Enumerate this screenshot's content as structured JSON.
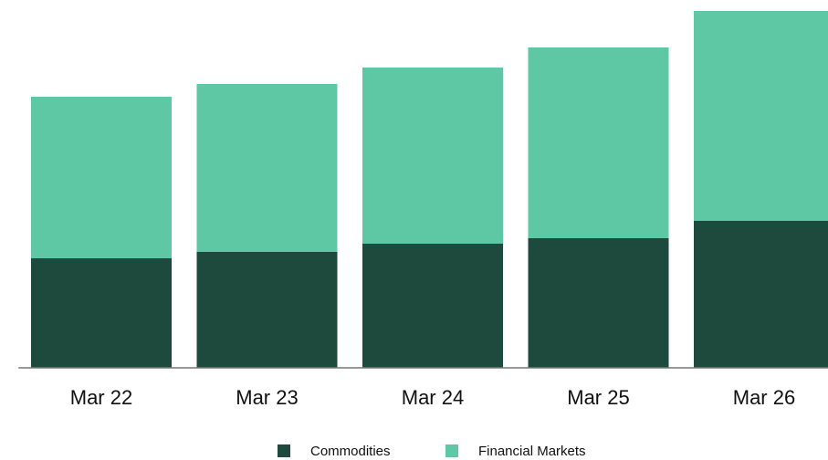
{
  "chart_data": {
    "type": "stacked_bar",
    "categories": [
      "Mar 22",
      "Mar 23",
      "Mar 24",
      "Mar 25",
      "Mar 26"
    ],
    "series": [
      {
        "name": "Commodities",
        "color": "#1e4a3d",
        "values": [
          120,
          127,
          136,
          142,
          161
        ]
      },
      {
        "name": "Financial Markets",
        "color": "#5ec8a5",
        "values": [
          177,
          184,
          193,
          209,
          230
        ]
      }
    ],
    "ylim": [
      0,
      400
    ]
  }
}
